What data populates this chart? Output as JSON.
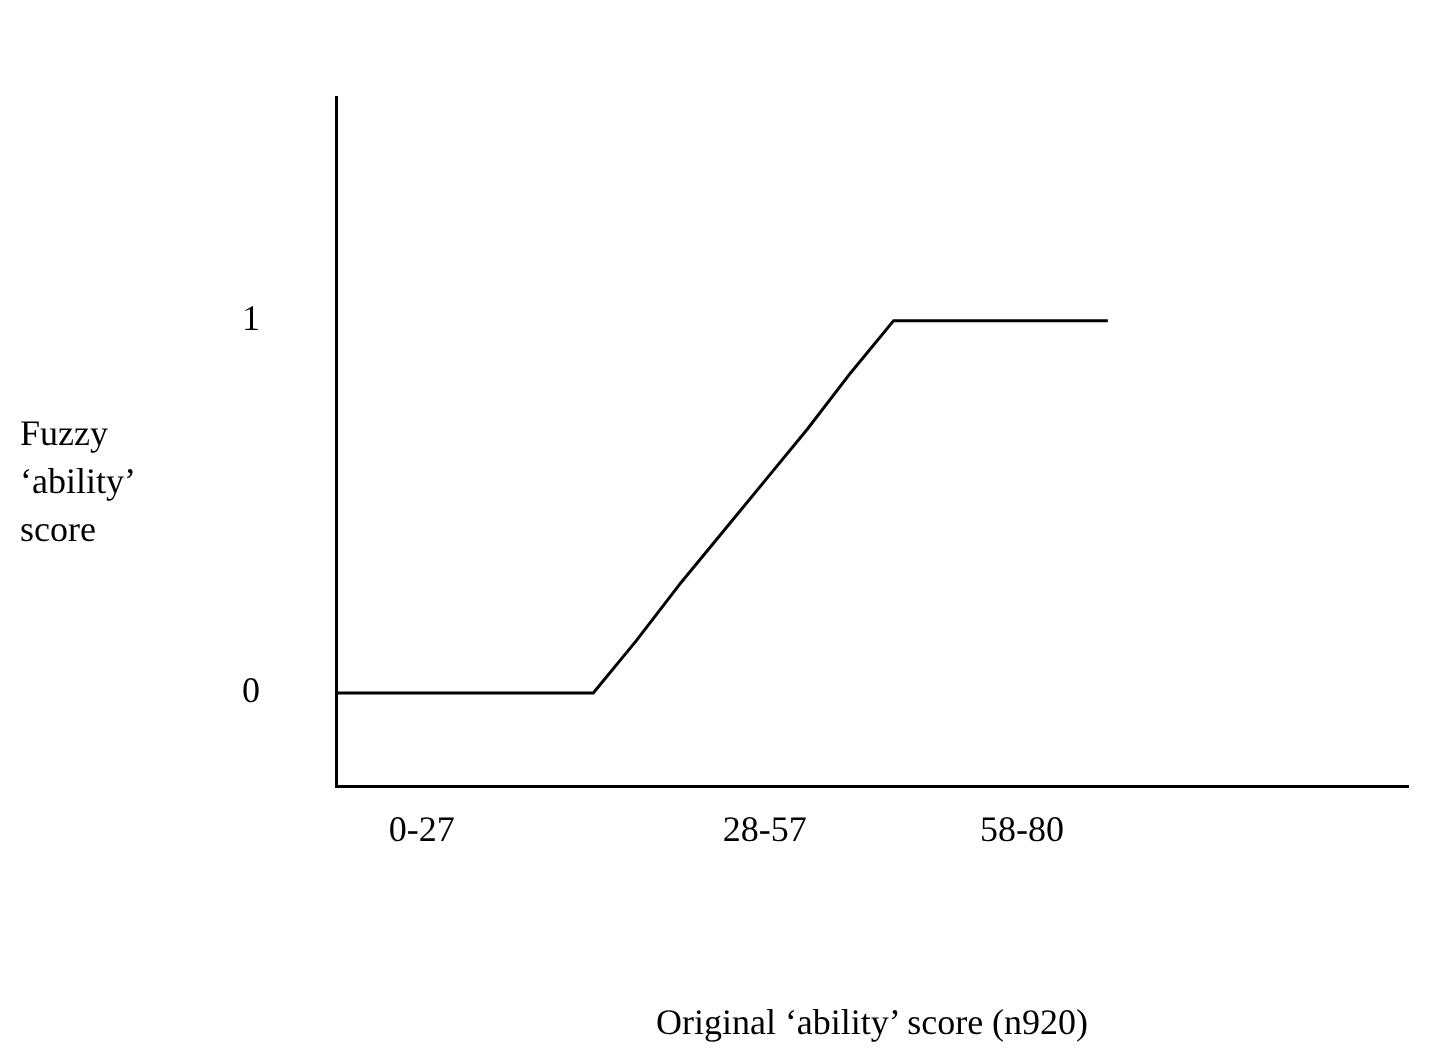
{
  "chart_data": {
    "type": "line",
    "xlabel": "Original ‘ability’ score (n920)",
    "ylabel": "Fuzzy ‘ability’ score",
    "categories": [
      null,
      null,
      "0-27",
      null,
      null,
      null,
      null,
      null,
      null,
      null,
      "28-57",
      null,
      null,
      null,
      null,
      null,
      "58-80",
      null,
      null,
      null,
      null,
      null,
      null,
      null,
      null,
      null
    ],
    "series": [
      {
        "color": "#000000",
        "values": [
          0,
          0,
          0,
          0,
          0,
          0,
          0,
          0.14,
          0.29,
          0.43,
          0.57,
          0.71,
          0.86,
          1,
          1,
          1,
          1,
          1,
          1,
          null,
          null,
          null,
          null,
          null,
          null,
          null
        ]
      }
    ],
    "ylim": [
      -0.25,
      1.6
    ],
    "yticks": [
      0,
      1
    ],
    "grid": false,
    "legend": false,
    "marker": "none",
    "line_style": "solid"
  }
}
